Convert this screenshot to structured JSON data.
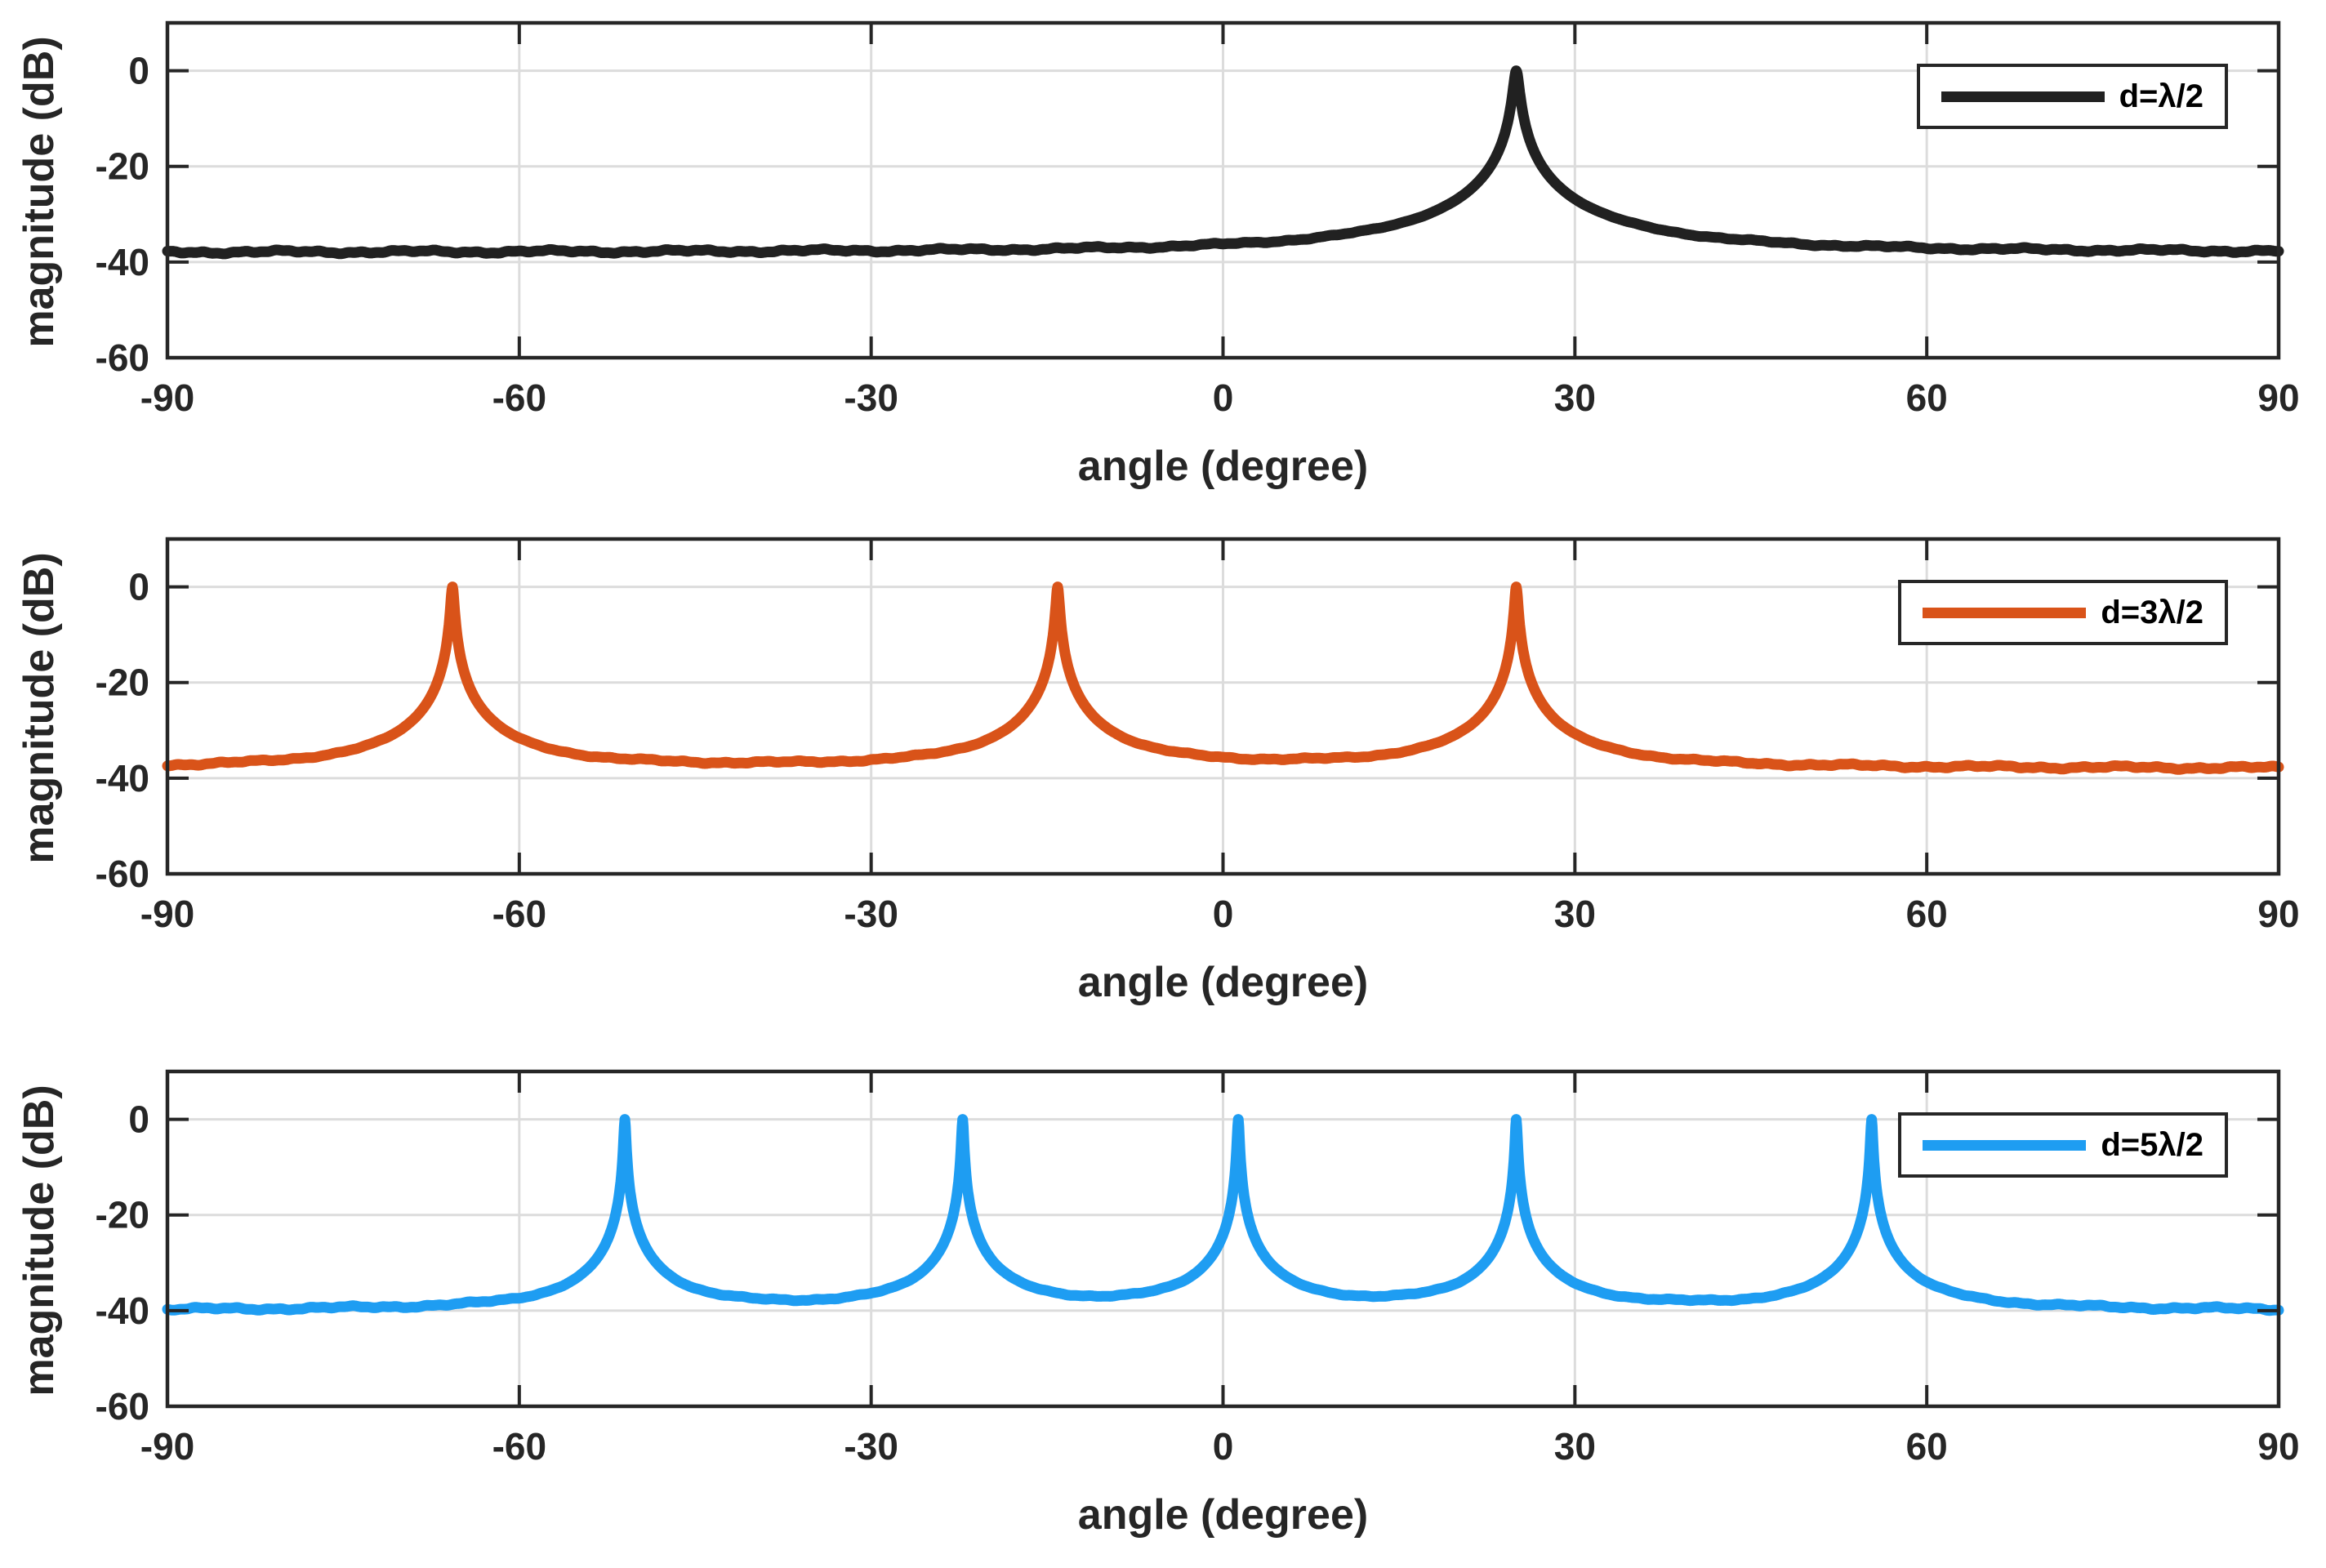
{
  "figure": {
    "background_color": "#ffffff",
    "description": "Three stacked line plots of beamforming/MUSIC spatial spectra for different array element spacings"
  },
  "styles": {
    "grid_color": "#dcdcdc",
    "axis_color": "#262626",
    "tick_label_color": "#262626",
    "plot_background": "#ffffff",
    "curve_stroke_width": 13,
    "border_stroke_width": 4.5,
    "grid_stroke_width": 3,
    "tick_stroke_width": 4,
    "tick_length": 26
  },
  "chart_data": [
    {
      "type": "line",
      "title": "",
      "xlabel": "angle (degree)",
      "ylabel": "magnitude (dB)",
      "xlim": [
        -90,
        90
      ],
      "ylim": [
        -60,
        10
      ],
      "x_ticks": [
        -90,
        -60,
        -30,
        0,
        30,
        60,
        90
      ],
      "y_ticks": [
        0,
        -20,
        -40,
        -60
      ],
      "grid": true,
      "legend": {
        "label": "d=λ/2",
        "position": "top-right"
      },
      "series": [
        {
          "id": "d-lambda-over-2",
          "name": "d=λ/2",
          "color": "#212121",
          "baseline_db": -38,
          "peak_db": 0,
          "peak_angles_deg": [
            25
          ],
          "peak_width_deg": 0.22
        }
      ]
    },
    {
      "type": "line",
      "title": "",
      "xlabel": "angle (degree)",
      "ylabel": "magnitude (dB)",
      "xlim": [
        -90,
        90
      ],
      "ylim": [
        -60,
        10
      ],
      "x_ticks": [
        -90,
        -60,
        -30,
        0,
        30,
        60,
        90
      ],
      "y_ticks": [
        0,
        -20,
        -40,
        -60
      ],
      "grid": true,
      "legend": {
        "label": "d=3λ/2",
        "position": "top-right"
      },
      "series": [
        {
          "id": "d-3lambda-over-2",
          "name": "d=3λ/2",
          "color": "#d95319",
          "baseline_db": -38,
          "peak_db": 0,
          "peak_angles_deg": [
            -65.7,
            -14.1,
            25
          ],
          "peak_width_deg": 0.13
        }
      ]
    },
    {
      "type": "line",
      "title": "",
      "xlabel": "angle (degree)",
      "ylabel": "magnitude (dB)",
      "xlim": [
        -90,
        90
      ],
      "ylim": [
        -60,
        10
      ],
      "x_ticks": [
        -90,
        -60,
        -30,
        0,
        30,
        60,
        90
      ],
      "y_ticks": [
        0,
        -20,
        -40,
        -60
      ],
      "grid": true,
      "legend": {
        "label": "d=5λ/2",
        "position": "top-right"
      },
      "series": [
        {
          "id": "d-5lambda-over-2",
          "name": "d=5λ/2",
          "color": "#1e9df2",
          "baseline_db": -40,
          "peak_db": 0,
          "peak_angles_deg": [
            -51.0,
            -22.2,
            1.3,
            25,
            55.3
          ],
          "peak_width_deg": 0.08
        }
      ]
    }
  ]
}
